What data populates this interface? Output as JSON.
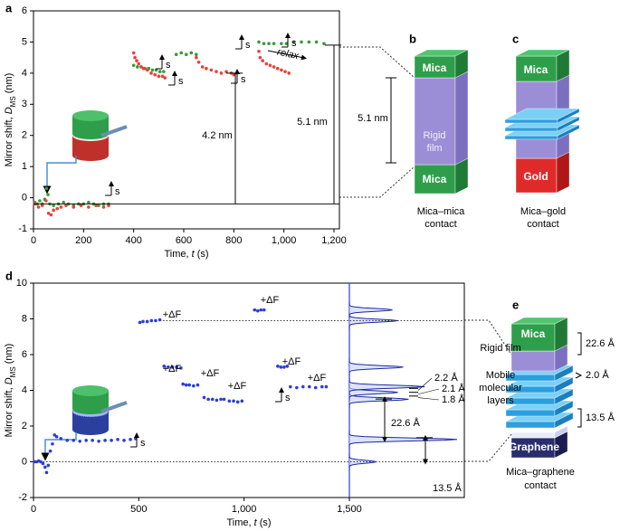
{
  "panel_labels": {
    "a": "a",
    "b": "b",
    "c": "c",
    "d": "d",
    "e": "e"
  },
  "chart_data": [
    {
      "type": "scatter",
      "xlim": [
        0,
        1200
      ],
      "ylim": [
        -1,
        6
      ],
      "xticks": [
        0,
        200,
        400,
        600,
        800,
        {
          "value": 1000,
          "label": "1,000"
        },
        {
          "value": 1200,
          "label": "1,200"
        }
      ],
      "yticks": [
        -1,
        0,
        1,
        2,
        3,
        4,
        5,
        6
      ],
      "xlabel": {
        "text": "Time, ",
        "symbol": "t",
        "unit": " (s)"
      },
      "ylabel": {
        "text": "Mirror shift, ",
        "symbol": "D",
        "subscript": "MS",
        "unit": " (nm)"
      },
      "series": [
        {
          "color": "#3a9a3a",
          "x": [
            5,
            15,
            25,
            35,
            45,
            52,
            58,
            65,
            80,
            100,
            120,
            140,
            160,
            180,
            200,
            220,
            240,
            260,
            280,
            300,
            400,
            415,
            430,
            445,
            460,
            475,
            490,
            505,
            520,
            570,
            590,
            610,
            630,
            650,
            900,
            920,
            940,
            960,
            990,
            1010,
            1040,
            1070,
            1100,
            1130,
            1160
          ],
          "values": [
            -0.15,
            -0.2,
            -0.1,
            -0.2,
            -0.05,
            0.3,
            0.1,
            -0.2,
            -0.25,
            -0.2,
            -0.15,
            -0.2,
            -0.25,
            -0.2,
            -0.2,
            -0.15,
            -0.2,
            -0.25,
            -0.2,
            -0.2,
            4.25,
            4.2,
            4.2,
            4.15,
            4.15,
            4.1,
            4.1,
            4.05,
            4.05,
            4.6,
            4.65,
            4.6,
            4.65,
            4.6,
            5.0,
            4.95,
            4.95,
            4.95,
            4.95,
            4.95,
            5.0,
            5.0,
            5.0,
            5.0,
            4.95
          ]
        },
        {
          "color": "#e8403a",
          "x": [
            5,
            20,
            35,
            50,
            60,
            70,
            80,
            95,
            110,
            130,
            160,
            190,
            220,
            250,
            280,
            300,
            400,
            405,
            412,
            420,
            430,
            440,
            455,
            470,
            485,
            500,
            515,
            525,
            650,
            660,
            675,
            690,
            710,
            730,
            750,
            770,
            790,
            800,
            900,
            905,
            915,
            930,
            945,
            960,
            975,
            990,
            1005,
            1020
          ],
          "values": [
            -0.2,
            -0.3,
            -0.25,
            -0.1,
            -0.5,
            -0.55,
            -0.4,
            -0.35,
            -0.3,
            -0.25,
            -0.3,
            -0.25,
            -0.3,
            -0.25,
            -0.3,
            -0.25,
            4.65,
            4.5,
            4.4,
            4.3,
            4.2,
            4.15,
            4.1,
            4.0,
            3.95,
            3.9,
            3.9,
            3.85,
            4.5,
            4.35,
            4.2,
            4.15,
            4.1,
            4.05,
            4.0,
            4.05,
            4.0,
            3.95,
            4.7,
            4.5,
            4.4,
            4.3,
            4.25,
            4.2,
            4.15,
            4.1,
            4.05,
            4.0
          ]
        }
      ],
      "measurements": [
        {
          "label": "4.2 nm",
          "from": -0.2,
          "to": 4.0
        },
        {
          "label": "5.1 nm",
          "from": -0.2,
          "to": 4.9
        }
      ],
      "annotations": [
        "s",
        "s",
        "s",
        "s",
        "s",
        "s",
        "relax"
      ]
    },
    {
      "type": "scatter",
      "xlim": [
        0,
        1500
      ],
      "ylim": [
        -2,
        10
      ],
      "xticks": [
        0,
        500,
        {
          "value": 1000,
          "label": "1,000"
        },
        {
          "value": 1500,
          "label": "1,500"
        }
      ],
      "yticks": [
        -2,
        0,
        2,
        4,
        6,
        8,
        10
      ],
      "xlabel": {
        "text": "Time, ",
        "symbol": "t",
        "unit": " (s)"
      },
      "ylabel": {
        "text": "Mirror shift, ",
        "symbol": "D",
        "subscript": "MS",
        "unit": " (nm)"
      },
      "series": [
        {
          "color": "#2a3fd6",
          "x": [
            5,
            15,
            25,
            35,
            45,
            55,
            62,
            70,
            80,
            90,
            100,
            110,
            130,
            160,
            190,
            220,
            250,
            280,
            310,
            340,
            370,
            400,
            430,
            460,
            485,
            505,
            520,
            540,
            560,
            580,
            600,
            620,
            640,
            660,
            680,
            700,
            710,
            725,
            740,
            760,
            780,
            810,
            830,
            850,
            870,
            890,
            905,
            930,
            950,
            970,
            990,
            1050,
            1065,
            1080,
            1095,
            1160,
            1175,
            1190,
            1205,
            1220,
            1250,
            1280,
            1310,
            1340,
            1370,
            1390
          ],
          "values": [
            0,
            0,
            0.05,
            0,
            -0.1,
            -0.3,
            -0.6,
            -0.2,
            0.6,
            1.0,
            1.5,
            1.4,
            1.3,
            1.2,
            1.2,
            1.15,
            1.2,
            1.2,
            1.15,
            1.2,
            1.2,
            1.25,
            1.2,
            1.25,
            1.3,
            7.8,
            7.85,
            7.85,
            7.9,
            7.9,
            7.95,
            5.35,
            5.3,
            5.3,
            5.3,
            5.25,
            4.35,
            4.3,
            4.3,
            4.25,
            4.3,
            3.6,
            3.5,
            3.5,
            3.45,
            3.5,
            3.5,
            3.4,
            3.4,
            3.35,
            3.4,
            8.5,
            8.45,
            8.5,
            8.5,
            5.35,
            5.3,
            5.3,
            5.35,
            4.2,
            4.15,
            4.2,
            4.2,
            4.15,
            4.2,
            4.2
          ]
        }
      ],
      "histogram": {
        "color": "#1a2aa0",
        "hlim": [
          0,
          100
        ],
        "centers": [
          0,
          1.25,
          3.5,
          3.89,
          4.2,
          5.3,
          7.9,
          8.5
        ],
        "heights": [
          25,
          100,
          55,
          45,
          70,
          50,
          45,
          40
        ]
      },
      "measurements": [
        {
          "label": "22.6 Å",
          "from": 1.25,
          "to": 3.51
        },
        {
          "label": "13.5 Å",
          "from": 0,
          "to": 1.35
        },
        {
          "label": "2.2 Å",
          "from": 3.89,
          "to": 4.11
        },
        {
          "label": "2.1 Å",
          "from": 3.68,
          "to": 3.89
        },
        {
          "label": "1.8 Å",
          "from": 3.5,
          "to": 3.68
        }
      ],
      "annotations": [
        "+ΔF",
        "+ΔF",
        "+ΔF",
        "+ΔF",
        "+ΔF",
        "+ΔF",
        "+ΔF",
        "s",
        "s"
      ]
    }
  ],
  "diagrams": {
    "b": {
      "top": "Mica",
      "film": [
        "Rigid",
        "film"
      ],
      "bottom": "Mica",
      "gap": "5.1 nm",
      "caption": [
        "Mica–mica",
        "contact"
      ]
    },
    "c": {
      "top": "Mica",
      "bottom": "Gold",
      "caption": [
        "Mica–gold",
        "contact"
      ]
    },
    "e": {
      "top": "Mica",
      "film": "Rigid film",
      "layers": [
        "Mobile",
        "molecular",
        "layers"
      ],
      "dims": [
        "22.6 Å",
        "2.0 Å",
        "13.5 Å"
      ],
      "bottom": "Graphene",
      "caption": [
        "Mica–graphene",
        "contact"
      ]
    }
  }
}
